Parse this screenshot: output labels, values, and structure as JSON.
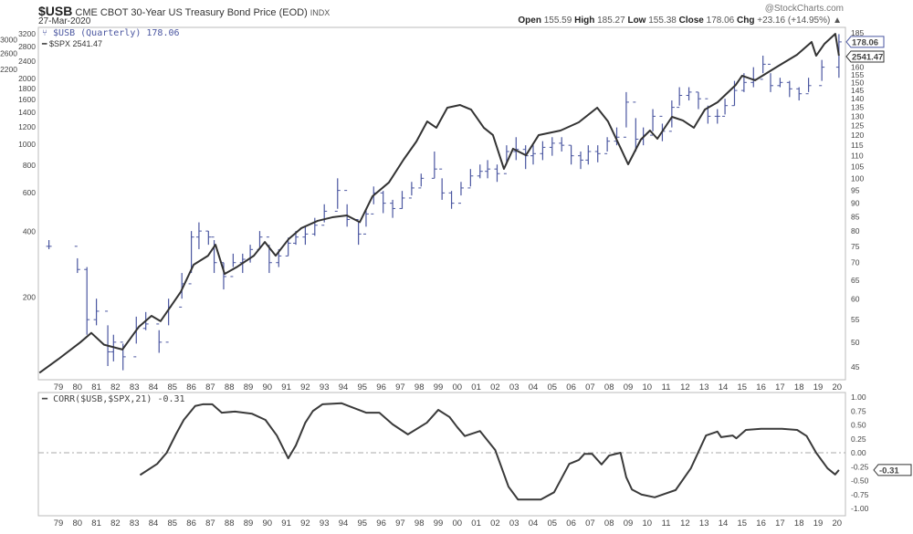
{
  "header": {
    "symbol": "$USB",
    "name": "CME CBOT 30-Year US Treasury Bond Price (EOD)",
    "exchange": "INDX",
    "date": "27-Mar-2020",
    "copyright": "@StockCharts.com",
    "open_label": "Open",
    "open": "155.59",
    "high_label": "High",
    "high": "185.27",
    "low_label": "Low",
    "low": "155.38",
    "close_label": "Close",
    "close": "178.06",
    "chg_label": "Chg",
    "chg": "+23.16 (+14.95%)",
    "chg_arrow": "▲"
  },
  "legend": {
    "usb": "$USB (Quarterly) 178.06",
    "spx": "$SPX 2541.47",
    "corr": "CORR($USB,$SPX,21) -0.31"
  },
  "colors": {
    "usb": "#4a56a0",
    "spx": "#333333",
    "corr": "#3a3a3a",
    "grid": "#cccccc"
  },
  "chart_data": [
    {
      "type": "bar",
      "title": "$USB (Quarterly) / $SPX overlay",
      "scale": "log",
      "x_tick_labels": [
        "79",
        "80",
        "81",
        "82",
        "83",
        "84",
        "85",
        "86",
        "87",
        "88",
        "89",
        "90",
        "91",
        "92",
        "93",
        "94",
        "95",
        "96",
        "97",
        "98",
        "99",
        "00",
        "01",
        "02",
        "03",
        "04",
        "05",
        "06",
        "07",
        "08",
        "09",
        "10",
        "11",
        "12",
        "13",
        "14",
        "15",
        "16",
        "17",
        "18",
        "19",
        "20"
      ],
      "right_axis_ticks": [
        185,
        160,
        155,
        150,
        145,
        140,
        135,
        130,
        125,
        120,
        115,
        110,
        105,
        100,
        95,
        90,
        85,
        80,
        75,
        70,
        65,
        60,
        55,
        50,
        45
      ],
      "left_axis_ticks": [
        3200,
        3000,
        2800,
        2600,
        2400,
        2200,
        2000,
        1800,
        1600,
        1400,
        1200,
        1000,
        800,
        600,
        400,
        200
      ],
      "last_labels": {
        "usb": "178.06",
        "spx": "2541.47"
      },
      "usb_bars_t_high_low_close": [
        [
          1978.5,
          77,
          74.1,
          75
        ],
        [
          1980.0,
          71.3,
          67,
          68
        ],
        [
          1980.5,
          68.7,
          51.6,
          55
        ],
        [
          1981.0,
          60.1,
          53.7,
          57
        ],
        [
          1981.6,
          53.7,
          45.2,
          48
        ],
        [
          1981.9,
          51.6,
          46.1,
          50
        ],
        [
          1982.4,
          49.7,
          44.4,
          47
        ],
        [
          1983.1,
          55.7,
          49.7,
          53
        ],
        [
          1983.6,
          56.8,
          52.6,
          54
        ],
        [
          1984.3,
          52.6,
          47.8,
          50
        ],
        [
          1984.8,
          60.1,
          53.7,
          58
        ],
        [
          1985.5,
          67,
          60.1,
          64
        ],
        [
          1986.0,
          80,
          67,
          78
        ],
        [
          1986.4,
          83,
          74.1,
          80
        ],
        [
          1986.9,
          80,
          75.5,
          78
        ],
        [
          1987.2,
          77,
          67,
          70
        ],
        [
          1987.7,
          70,
          62.5,
          66
        ],
        [
          1988.2,
          72.7,
          68.7,
          70
        ],
        [
          1988.7,
          72.7,
          67,
          71
        ],
        [
          1989.1,
          75.5,
          70,
          74
        ],
        [
          1989.6,
          80,
          74.1,
          78
        ],
        [
          1990.1,
          75.5,
          67,
          70
        ],
        [
          1990.6,
          74.1,
          68.7,
          72
        ],
        [
          1991.1,
          77.8,
          72,
          76
        ],
        [
          1991.5,
          80,
          75.5,
          78
        ],
        [
          1992.0,
          81.5,
          75.5,
          79
        ],
        [
          1992.5,
          84.6,
          78.4,
          82
        ],
        [
          1993.0,
          89.6,
          83,
          87
        ],
        [
          1993.7,
          100,
          87.9,
          95
        ],
        [
          1994.2,
          89.6,
          81.5,
          84
        ],
        [
          1994.8,
          83,
          75.5,
          79
        ],
        [
          1995.2,
          87.9,
          81.5,
          86
        ],
        [
          1995.6,
          96.6,
          89.6,
          94
        ],
        [
          1996.1,
          94.8,
          86.3,
          90
        ],
        [
          1996.6,
          91.3,
          84.6,
          88
        ],
        [
          1997.1,
          94.8,
          87.9,
          92
        ],
        [
          1997.6,
          98.5,
          93,
          96
        ],
        [
          1998.1,
          102,
          96.6,
          100
        ],
        [
          1998.8,
          112,
          100,
          104
        ],
        [
          1999.2,
          100,
          91.3,
          94
        ],
        [
          1999.7,
          94.8,
          87.9,
          90
        ],
        [
          2000.2,
          98.5,
          93,
          96
        ],
        [
          2000.7,
          104,
          96.6,
          101
        ],
        [
          2001.2,
          106,
          100,
          103
        ],
        [
          2001.6,
          108,
          100,
          104
        ],
        [
          2002.1,
          106,
          98.5,
          102
        ],
        [
          2002.6,
          115,
          106,
          112
        ],
        [
          2003.1,
          119,
          108,
          113
        ],
        [
          2003.6,
          115,
          104,
          110
        ],
        [
          2004.0,
          115,
          106,
          111
        ],
        [
          2004.5,
          117,
          108,
          114
        ],
        [
          2005.0,
          119,
          110,
          116
        ],
        [
          2005.5,
          119,
          112,
          115
        ],
        [
          2006.0,
          115,
          106,
          110
        ],
        [
          2006.5,
          112,
          104,
          108
        ],
        [
          2006.9,
          115,
          106,
          112
        ],
        [
          2007.4,
          115,
          107,
          111
        ],
        [
          2007.9,
          119,
          112,
          117
        ],
        [
          2008.4,
          124,
          115,
          119
        ],
        [
          2008.9,
          144,
          124,
          138
        ],
        [
          2009.4,
          129,
          112,
          118
        ],
        [
          2009.8,
          124,
          115,
          120
        ],
        [
          2010.3,
          134,
          122,
          130
        ],
        [
          2010.8,
          126,
          117,
          122
        ],
        [
          2011.3,
          139,
          124,
          135
        ],
        [
          2011.7,
          147,
          136,
          142
        ],
        [
          2012.2,
          147,
          139,
          144
        ],
        [
          2012.7,
          144,
          134,
          140
        ],
        [
          2013.2,
          136,
          126,
          130
        ],
        [
          2013.7,
          134,
          126,
          130
        ],
        [
          2014.1,
          140,
          131,
          136
        ],
        [
          2014.6,
          151,
          136,
          145
        ],
        [
          2015.1,
          156,
          144,
          150
        ],
        [
          2015.6,
          160,
          147,
          152
        ],
        [
          2016.1,
          168,
          156,
          162
        ],
        [
          2016.5,
          156,
          144,
          148
        ],
        [
          2017.0,
          153,
          147,
          150
        ],
        [
          2017.5,
          151,
          141,
          146
        ],
        [
          2018.0,
          147,
          139,
          143
        ],
        [
          2018.5,
          153,
          144,
          148
        ],
        [
          2019.2,
          165,
          151,
          160
        ],
        [
          2020.1,
          184,
          153,
          178.06
        ]
      ],
      "spx_line_t_value": [
        [
          1978.0,
          90
        ],
        [
          1979.0,
          104
        ],
        [
          1980.15,
          124
        ],
        [
          1980.73,
          137
        ],
        [
          1981.4,
          121
        ],
        [
          1982.37,
          115
        ],
        [
          1983.23,
          146
        ],
        [
          1983.9,
          164
        ],
        [
          1984.38,
          155
        ],
        [
          1985.44,
          211
        ],
        [
          1986.12,
          281
        ],
        [
          1986.88,
          309
        ],
        [
          1987.27,
          347
        ],
        [
          1987.75,
          255
        ],
        [
          1988.42,
          275
        ],
        [
          1989.29,
          309
        ],
        [
          1989.87,
          357
        ],
        [
          1990.44,
          309
        ],
        [
          1991.12,
          368
        ],
        [
          1991.79,
          413
        ],
        [
          1992.65,
          446
        ],
        [
          1993.42,
          463
        ],
        [
          1994.19,
          472
        ],
        [
          1994.87,
          440
        ],
        [
          1995.54,
          578
        ],
        [
          1996.4,
          668
        ],
        [
          1997.17,
          849
        ],
        [
          1997.85,
          1029
        ],
        [
          1998.42,
          1271
        ],
        [
          1998.9,
          1189
        ],
        [
          1999.48,
          1469
        ],
        [
          2000.15,
          1511
        ],
        [
          2000.73,
          1440
        ],
        [
          2001.4,
          1189
        ],
        [
          2001.88,
          1101
        ],
        [
          2002.46,
          771
        ],
        [
          2002.94,
          953
        ],
        [
          2003.62,
          890
        ],
        [
          2004.29,
          1101
        ],
        [
          2005.44,
          1155
        ],
        [
          2006.4,
          1259
        ],
        [
          2007.37,
          1469
        ],
        [
          2007.94,
          1271
        ],
        [
          2008.62,
          953
        ],
        [
          2009.0,
          809
        ],
        [
          2009.67,
          1050
        ],
        [
          2010.15,
          1155
        ],
        [
          2010.54,
          1059
        ],
        [
          2011.31,
          1334
        ],
        [
          2011.88,
          1284
        ],
        [
          2012.46,
          1189
        ],
        [
          2013.04,
          1440
        ],
        [
          2013.71,
          1556
        ],
        [
          2014.67,
          1868
        ],
        [
          2015.0,
          2057
        ],
        [
          2015.68,
          1960
        ],
        [
          2016.93,
          2285
        ],
        [
          2017.89,
          2566
        ],
        [
          2018.66,
          2935
        ],
        [
          2018.9,
          2540
        ],
        [
          2019.34,
          2880
        ],
        [
          2019.91,
          3200
        ],
        [
          2020.1,
          2541.47
        ]
      ]
    },
    {
      "type": "line",
      "title": "CORR($USB,$SPX,21)",
      "ylim": [
        -1,
        1
      ],
      "y_tick_labels": [
        "1.00",
        "0.75",
        "0.50",
        "0.25",
        "0.00",
        "-0.25",
        "-0.50",
        "-0.75",
        "-1.00"
      ],
      "last_label": "-0.31",
      "points_t_value": [
        [
          1983.3,
          -0.4
        ],
        [
          1984.2,
          -0.2
        ],
        [
          1984.7,
          0.0
        ],
        [
          1985.2,
          0.34
        ],
        [
          1985.6,
          0.59
        ],
        [
          1986.2,
          0.84
        ],
        [
          1986.6,
          0.87
        ],
        [
          1987.1,
          0.87
        ],
        [
          1987.6,
          0.72
        ],
        [
          1988.3,
          0.74
        ],
        [
          1989.2,
          0.7
        ],
        [
          1989.9,
          0.59
        ],
        [
          1990.5,
          0.31
        ],
        [
          1991.1,
          -0.1
        ],
        [
          1991.5,
          0.13
        ],
        [
          1992.0,
          0.54
        ],
        [
          1992.4,
          0.75
        ],
        [
          1992.9,
          0.87
        ],
        [
          1993.9,
          0.89
        ],
        [
          1995.2,
          0.72
        ],
        [
          1995.9,
          0.72
        ],
        [
          1996.6,
          0.51
        ],
        [
          1997.4,
          0.33
        ],
        [
          1998.4,
          0.54
        ],
        [
          1999.0,
          0.77
        ],
        [
          1999.6,
          0.64
        ],
        [
          2000.0,
          0.46
        ],
        [
          2000.4,
          0.3
        ],
        [
          2001.2,
          0.39
        ],
        [
          2002.0,
          0.05
        ],
        [
          2002.7,
          -0.61
        ],
        [
          2003.2,
          -0.84
        ],
        [
          2004.4,
          -0.84
        ],
        [
          2005.1,
          -0.71
        ],
        [
          2005.9,
          -0.2
        ],
        [
          2006.4,
          -0.13
        ],
        [
          2006.7,
          -0.02
        ],
        [
          2007.1,
          -0.02
        ],
        [
          2007.6,
          -0.21
        ],
        [
          2008.0,
          -0.05
        ],
        [
          2008.6,
          0.0
        ],
        [
          2008.9,
          -0.44
        ],
        [
          2009.2,
          -0.66
        ],
        [
          2009.7,
          -0.75
        ],
        [
          2010.4,
          -0.8
        ],
        [
          2010.9,
          -0.74
        ],
        [
          2011.5,
          -0.67
        ],
        [
          2012.3,
          -0.28
        ],
        [
          2013.1,
          0.31
        ],
        [
          2013.7,
          0.38
        ],
        [
          2013.9,
          0.28
        ],
        [
          2014.5,
          0.31
        ],
        [
          2014.7,
          0.26
        ],
        [
          2015.2,
          0.41
        ],
        [
          2016.0,
          0.43
        ],
        [
          2017.1,
          0.43
        ],
        [
          2017.9,
          0.41
        ],
        [
          2018.4,
          0.3
        ],
        [
          2018.9,
          0.0
        ],
        [
          2019.5,
          -0.28
        ],
        [
          2019.9,
          -0.39
        ],
        [
          2020.1,
          -0.31
        ]
      ]
    }
  ]
}
